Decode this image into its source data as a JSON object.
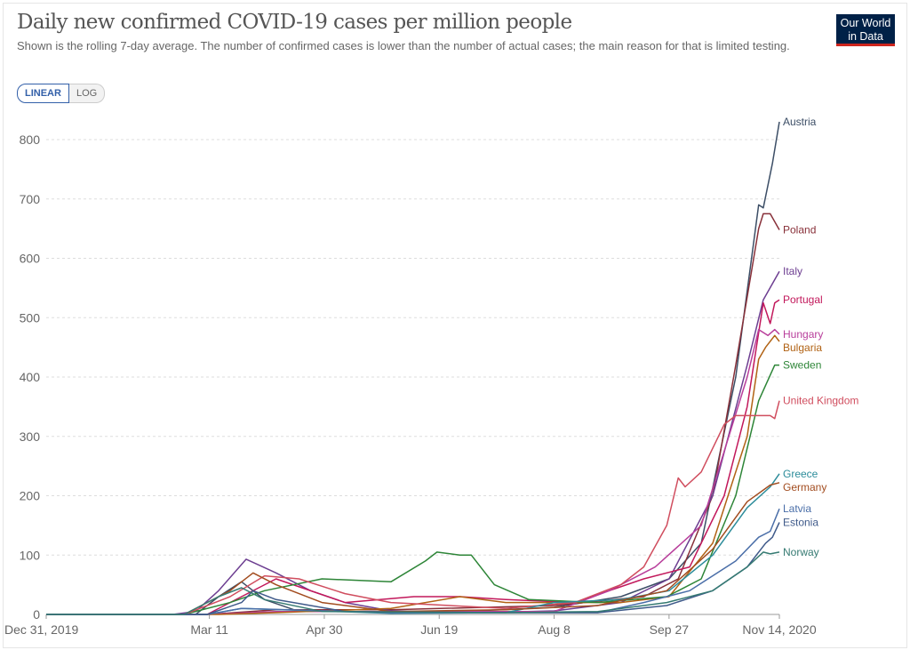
{
  "header": {
    "title": "Daily new confirmed COVID-19 cases per million people",
    "subtitle": "Shown is the rolling 7-day average. The number of confirmed cases is lower than the number of actual cases; the main reason for that is limited testing.",
    "logo": "Our World in Data",
    "logo_line1": "Our World",
    "logo_line2": "in Data"
  },
  "controls": {
    "linear": "LINEAR",
    "log": "LOG"
  },
  "chart_data": {
    "type": "line",
    "title": "Daily new confirmed COVID-19 cases per million people",
    "x_unit": "days since Dec 31, 2019",
    "xlim": [
      0,
      319
    ],
    "ylim": [
      0,
      800
    ],
    "yticks": [
      0,
      100,
      200,
      300,
      400,
      500,
      600,
      700,
      800
    ],
    "xticks": [
      {
        "day": 0,
        "label": "Dec 31, 2019"
      },
      {
        "day": 71,
        "label": "Mar 11"
      },
      {
        "day": 121,
        "label": "Apr 30"
      },
      {
        "day": 171,
        "label": "Jun 19"
      },
      {
        "day": 221,
        "label": "Aug 8"
      },
      {
        "day": 271,
        "label": "Sep 27"
      },
      {
        "day": 319,
        "label": "Nov 14, 2020"
      }
    ],
    "grid": "horizontal dashed",
    "legend": "end-of-line labels right",
    "series": [
      {
        "name": "Austria",
        "color": "#3c4e66",
        "points": [
          [
            0,
            0
          ],
          [
            65,
            0
          ],
          [
            75,
            30
          ],
          [
            85,
            55
          ],
          [
            95,
            25
          ],
          [
            110,
            5
          ],
          [
            180,
            5
          ],
          [
            221,
            12
          ],
          [
            250,
            30
          ],
          [
            271,
            60
          ],
          [
            285,
            120
          ],
          [
            300,
            400
          ],
          [
            310,
            690
          ],
          [
            312,
            685
          ],
          [
            316,
            760
          ],
          [
            319,
            830
          ]
        ]
      },
      {
        "name": "Poland",
        "color": "#883039",
        "points": [
          [
            0,
            0
          ],
          [
            70,
            0
          ],
          [
            100,
            8
          ],
          [
            150,
            8
          ],
          [
            221,
            15
          ],
          [
            260,
            30
          ],
          [
            275,
            60
          ],
          [
            290,
            200
          ],
          [
            300,
            420
          ],
          [
            310,
            650
          ],
          [
            312,
            675
          ],
          [
            315,
            675
          ],
          [
            319,
            648
          ]
        ]
      },
      {
        "name": "Italy",
        "color": "#6d3e91",
        "points": [
          [
            0,
            0
          ],
          [
            55,
            0
          ],
          [
            65,
            5
          ],
          [
            75,
            40
          ],
          [
            87,
            93
          ],
          [
            100,
            70
          ],
          [
            115,
            40
          ],
          [
            130,
            20
          ],
          [
            150,
            6
          ],
          [
            190,
            3
          ],
          [
            221,
            6
          ],
          [
            250,
            20
          ],
          [
            271,
            60
          ],
          [
            290,
            200
          ],
          [
            305,
            420
          ],
          [
            312,
            530
          ],
          [
            319,
            578
          ]
        ]
      },
      {
        "name": "Portugal",
        "color": "#c2185b",
        "points": [
          [
            0,
            0
          ],
          [
            70,
            0
          ],
          [
            85,
            30
          ],
          [
            100,
            60
          ],
          [
            130,
            20
          ],
          [
            160,
            30
          ],
          [
            180,
            30
          ],
          [
            200,
            25
          ],
          [
            230,
            20
          ],
          [
            260,
            60
          ],
          [
            280,
            80
          ],
          [
            295,
            200
          ],
          [
            305,
            350
          ],
          [
            312,
            525
          ],
          [
            315,
            490
          ],
          [
            317,
            525
          ],
          [
            319,
            530
          ]
        ]
      },
      {
        "name": "Hungary",
        "color": "#b83e9b",
        "points": [
          [
            0,
            0
          ],
          [
            70,
            0
          ],
          [
            100,
            5
          ],
          [
            221,
            5
          ],
          [
            245,
            40
          ],
          [
            265,
            80
          ],
          [
            285,
            150
          ],
          [
            305,
            400
          ],
          [
            310,
            480
          ],
          [
            314,
            470
          ],
          [
            317,
            480
          ],
          [
            319,
            472
          ]
        ]
      },
      {
        "name": "Bulgaria",
        "color": "#b16214",
        "points": [
          [
            0,
            0
          ],
          [
            75,
            0
          ],
          [
            100,
            3
          ],
          [
            150,
            10
          ],
          [
            180,
            30
          ],
          [
            200,
            20
          ],
          [
            250,
            20
          ],
          [
            271,
            30
          ],
          [
            290,
            120
          ],
          [
            305,
            300
          ],
          [
            310,
            430
          ],
          [
            313,
            450
          ],
          [
            317,
            470
          ],
          [
            319,
            460
          ]
        ]
      },
      {
        "name": "Sweden",
        "color": "#2d8537",
        "points": [
          [
            0,
            0
          ],
          [
            60,
            0
          ],
          [
            80,
            20
          ],
          [
            95,
            40
          ],
          [
            120,
            60
          ],
          [
            150,
            55
          ],
          [
            165,
            90
          ],
          [
            170,
            105
          ],
          [
            180,
            100
          ],
          [
            185,
            100
          ],
          [
            195,
            50
          ],
          [
            210,
            25
          ],
          [
            240,
            20
          ],
          [
            270,
            30
          ],
          [
            285,
            60
          ],
          [
            300,
            200
          ],
          [
            310,
            360
          ],
          [
            317,
            420
          ],
          [
            319,
            420
          ]
        ]
      },
      {
        "name": "United Kingdom",
        "color": "#d04d5e",
        "points": [
          [
            0,
            0
          ],
          [
            60,
            0
          ],
          [
            80,
            30
          ],
          [
            95,
            65
          ],
          [
            110,
            60
          ],
          [
            130,
            35
          ],
          [
            150,
            20
          ],
          [
            200,
            10
          ],
          [
            230,
            20
          ],
          [
            250,
            50
          ],
          [
            260,
            80
          ],
          [
            270,
            150
          ],
          [
            275,
            230
          ],
          [
            278,
            215
          ],
          [
            285,
            240
          ],
          [
            295,
            320
          ],
          [
            300,
            335
          ],
          [
            305,
            335
          ],
          [
            315,
            335
          ],
          [
            317,
            330
          ],
          [
            319,
            360
          ]
        ]
      },
      {
        "name": "Greece",
        "color": "#2c8c9a",
        "points": [
          [
            0,
            0
          ],
          [
            70,
            0
          ],
          [
            85,
            10
          ],
          [
            150,
            2
          ],
          [
            200,
            3
          ],
          [
            221,
            20
          ],
          [
            250,
            25
          ],
          [
            271,
            40
          ],
          [
            290,
            100
          ],
          [
            305,
            180
          ],
          [
            315,
            215
          ],
          [
            319,
            237
          ]
        ]
      },
      {
        "name": "Germany",
        "color": "#a24c1f",
        "points": [
          [
            0,
            0
          ],
          [
            60,
            0
          ],
          [
            80,
            40
          ],
          [
            90,
            70
          ],
          [
            100,
            50
          ],
          [
            120,
            20
          ],
          [
            150,
            5
          ],
          [
            200,
            8
          ],
          [
            240,
            15
          ],
          [
            270,
            40
          ],
          [
            290,
            110
          ],
          [
            305,
            190
          ],
          [
            315,
            218
          ],
          [
            319,
            222
          ]
        ]
      },
      {
        "name": "Latvia",
        "color": "#4a6ea8",
        "points": [
          [
            0,
            0
          ],
          [
            70,
            0
          ],
          [
            85,
            10
          ],
          [
            150,
            3
          ],
          [
            240,
            3
          ],
          [
            260,
            20
          ],
          [
            280,
            40
          ],
          [
            300,
            90
          ],
          [
            310,
            130
          ],
          [
            315,
            140
          ],
          [
            319,
            178
          ]
        ]
      },
      {
        "name": "Estonia",
        "color": "#3f5a8a",
        "points": [
          [
            0,
            0
          ],
          [
            70,
            0
          ],
          [
            85,
            20
          ],
          [
            90,
            40
          ],
          [
            100,
            25
          ],
          [
            130,
            5
          ],
          [
            200,
            3
          ],
          [
            240,
            3
          ],
          [
            270,
            15
          ],
          [
            290,
            40
          ],
          [
            305,
            80
          ],
          [
            313,
            120
          ],
          [
            316,
            130
          ],
          [
            319,
            155
          ]
        ]
      },
      {
        "name": "Norway",
        "color": "#357a72",
        "points": [
          [
            0,
            0
          ],
          [
            60,
            0
          ],
          [
            75,
            30
          ],
          [
            85,
            45
          ],
          [
            95,
            25
          ],
          [
            120,
            5
          ],
          [
            200,
            3
          ],
          [
            240,
            5
          ],
          [
            270,
            20
          ],
          [
            290,
            40
          ],
          [
            305,
            80
          ],
          [
            312,
            105
          ],
          [
            315,
            102
          ],
          [
            319,
            105
          ]
        ]
      }
    ]
  }
}
